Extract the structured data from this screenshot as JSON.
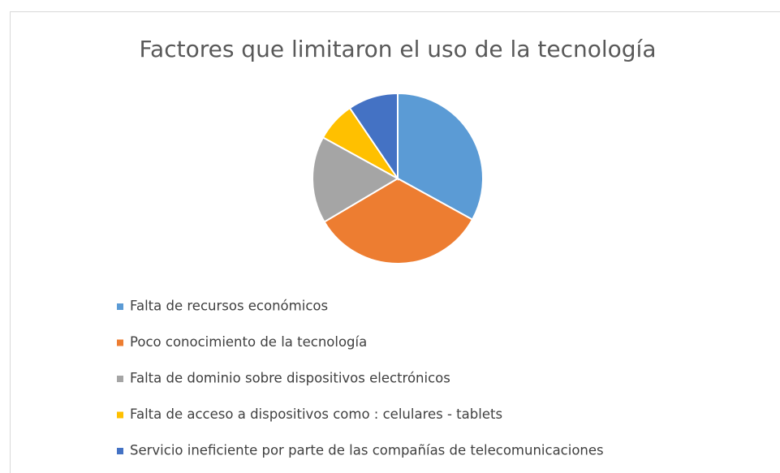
{
  "chart_data": {
    "type": "pie",
    "title": "Factores que limitaron el uso de la tecnología",
    "categories": [
      "Falta de recursos económicos",
      "Poco conocimiento de la tecnología",
      "Falta de dominio sobre dispositivos electrónicos",
      "Falta de acceso a dispositivos como : celulares - tablets",
      "Servicio ineficiente por parte de las compañías de telecomunicaciones"
    ],
    "values": [
      33,
      33.5,
      16.5,
      7.5,
      9.5
    ],
    "colors": [
      "#5b9bd5",
      "#ed7d31",
      "#a5a5a5",
      "#ffc000",
      "#4472c4"
    ],
    "legend": "bottom"
  }
}
